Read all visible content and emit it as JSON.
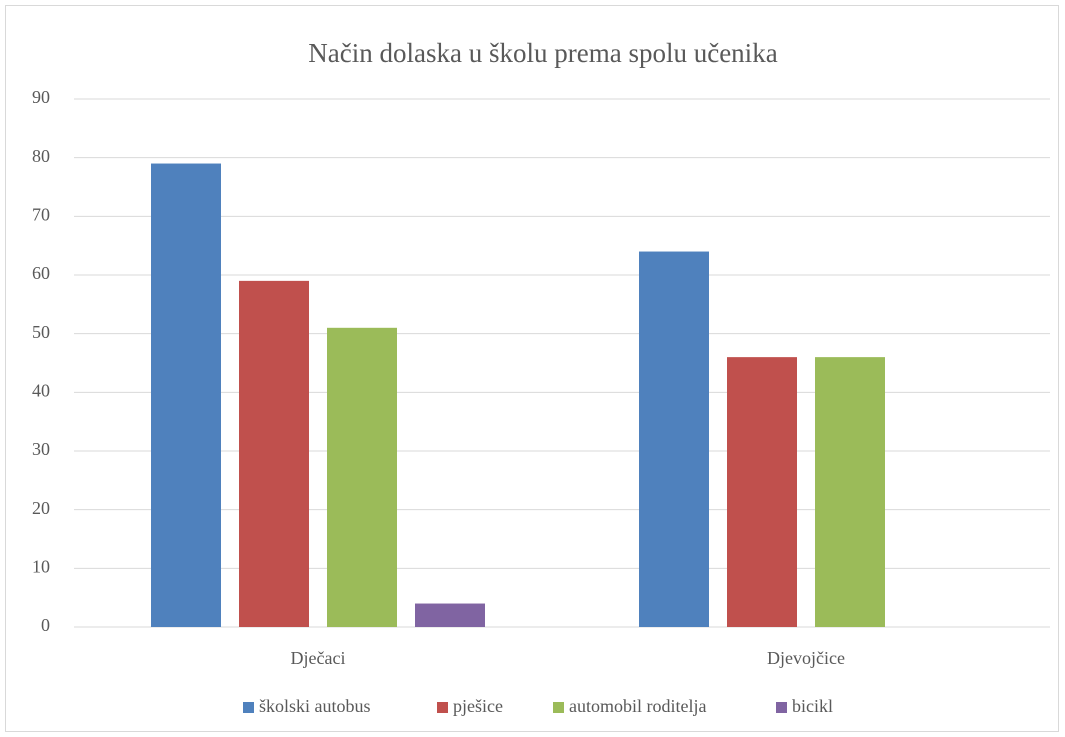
{
  "chart_data": {
    "type": "bar",
    "title": "Način dolaska u školu prema spolu učenika",
    "categories": [
      "Dječaci",
      "Djevojčice"
    ],
    "series": [
      {
        "name": "školski autobus",
        "color": "#4f81bd",
        "values": [
          79,
          64
        ]
      },
      {
        "name": "pješice",
        "color": "#c0504d",
        "values": [
          59,
          46
        ]
      },
      {
        "name": "automobil roditelja",
        "color": "#9bbb59",
        "values": [
          51,
          46
        ]
      },
      {
        "name": "bicikl",
        "color": "#8064a2",
        "values": [
          4,
          0
        ]
      }
    ],
    "ylim": [
      0,
      90
    ],
    "yticks": [
      0,
      10,
      20,
      30,
      40,
      50,
      60,
      70,
      80,
      90
    ],
    "grid": true,
    "legend": "bottom"
  }
}
